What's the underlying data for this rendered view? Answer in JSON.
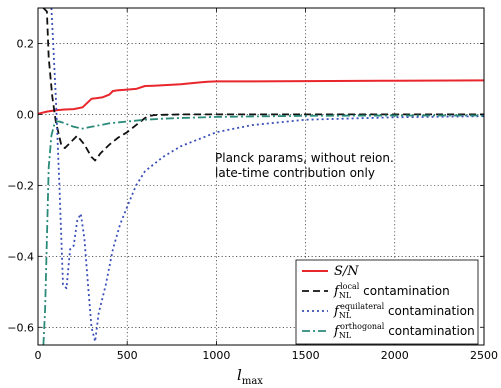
{
  "chart_data": {
    "type": "line",
    "xlabel_base": "l",
    "xlabel_sub": "max",
    "ylabel": "",
    "xlim": [
      0,
      2500
    ],
    "ylim": [
      -0.65,
      0.3
    ],
    "xticks": [
      0,
      500,
      1000,
      1500,
      2000,
      2500
    ],
    "xtick_labels": [
      "0",
      "500",
      "1000",
      "1500",
      "2000",
      "2500"
    ],
    "yticks": [
      0.2,
      0.0,
      -0.2,
      -0.4,
      -0.6
    ],
    "ytick_labels": [
      "0.2",
      "0.0",
      "−0.2",
      "−0.4",
      "−0.6"
    ],
    "grid": true,
    "legend_position": "lower-right",
    "annotation_lines": [
      "Planck params, without reion.",
      "late-time contribution only"
    ],
    "series": [
      {
        "name": "S/N",
        "legend_math": "S/N",
        "legend_sup": "",
        "legend_rest": "",
        "color": "#e8262b",
        "dash": "",
        "x": [
          2,
          50,
          100,
          150,
          200,
          250,
          300,
          330,
          360,
          400,
          420,
          450,
          500,
          550,
          600,
          650,
          700,
          800,
          900,
          950,
          1000,
          1200,
          1500,
          2000,
          2500
        ],
        "y": [
          0.002,
          0.008,
          0.012,
          0.014,
          0.015,
          0.02,
          0.044,
          0.046,
          0.048,
          0.056,
          0.066,
          0.068,
          0.07,
          0.072,
          0.08,
          0.081,
          0.082,
          0.085,
          0.09,
          0.092,
          0.093,
          0.093,
          0.094,
          0.095,
          0.096
        ]
      },
      {
        "name": "local contamination",
        "legend_math": "f",
        "legend_sup": "local",
        "legend_rest": " contamination",
        "color": "#111111",
        "dash": "7,4",
        "x": [
          30,
          50,
          60,
          80,
          100,
          130,
          150,
          180,
          220,
          260,
          300,
          320,
          350,
          400,
          450,
          500,
          550,
          600,
          620,
          650,
          700,
          800,
          1000,
          1500,
          2000,
          2500
        ],
        "y": [
          0.3,
          0.29,
          0.16,
          0.05,
          -0.02,
          -0.085,
          -0.095,
          -0.08,
          -0.06,
          -0.085,
          -0.12,
          -0.13,
          -0.11,
          -0.085,
          -0.065,
          -0.05,
          -0.03,
          -0.01,
          -0.005,
          -0.002,
          -0.001,
          0.0,
          0.0,
          0.0,
          0.0,
          0.0
        ]
      },
      {
        "name": "equilateral contamination",
        "legend_math": "f",
        "legend_sup": "equilateral",
        "legend_rest": " contamination",
        "color": "#3a4fb8",
        "dash": "2,3",
        "x": [
          75,
          85,
          100,
          120,
          140,
          160,
          180,
          200,
          220,
          240,
          260,
          280,
          300,
          320,
          340,
          380,
          420,
          460,
          500,
          550,
          600,
          700,
          800,
          1000,
          1200,
          1500,
          2000,
          2500
        ],
        "y": [
          0.3,
          0.2,
          0.05,
          -0.2,
          -0.48,
          -0.49,
          -0.38,
          -0.37,
          -0.3,
          -0.28,
          -0.35,
          -0.48,
          -0.6,
          -0.64,
          -0.56,
          -0.48,
          -0.38,
          -0.31,
          -0.26,
          -0.2,
          -0.16,
          -0.12,
          -0.09,
          -0.05,
          -0.03,
          -0.015,
          -0.008,
          -0.005
        ]
      },
      {
        "name": "orthogonal contamination",
        "legend_math": "f",
        "legend_sup": "orthogonal",
        "legend_rest": " contamination",
        "color": "#2a8a7a",
        "dash": "8,3,2,3",
        "x": [
          30,
          40,
          50,
          60,
          75,
          90,
          105,
          120,
          150,
          200,
          250,
          300,
          350,
          400,
          500,
          600,
          700,
          800,
          1000,
          1500,
          2000,
          2500
        ],
        "y": [
          -0.65,
          -0.55,
          -0.35,
          -0.15,
          -0.06,
          -0.03,
          -0.02,
          -0.02,
          -0.025,
          -0.035,
          -0.04,
          -0.035,
          -0.03,
          -0.025,
          -0.02,
          -0.015,
          -0.012,
          -0.01,
          -0.007,
          -0.004,
          -0.003,
          -0.003
        ]
      }
    ]
  }
}
